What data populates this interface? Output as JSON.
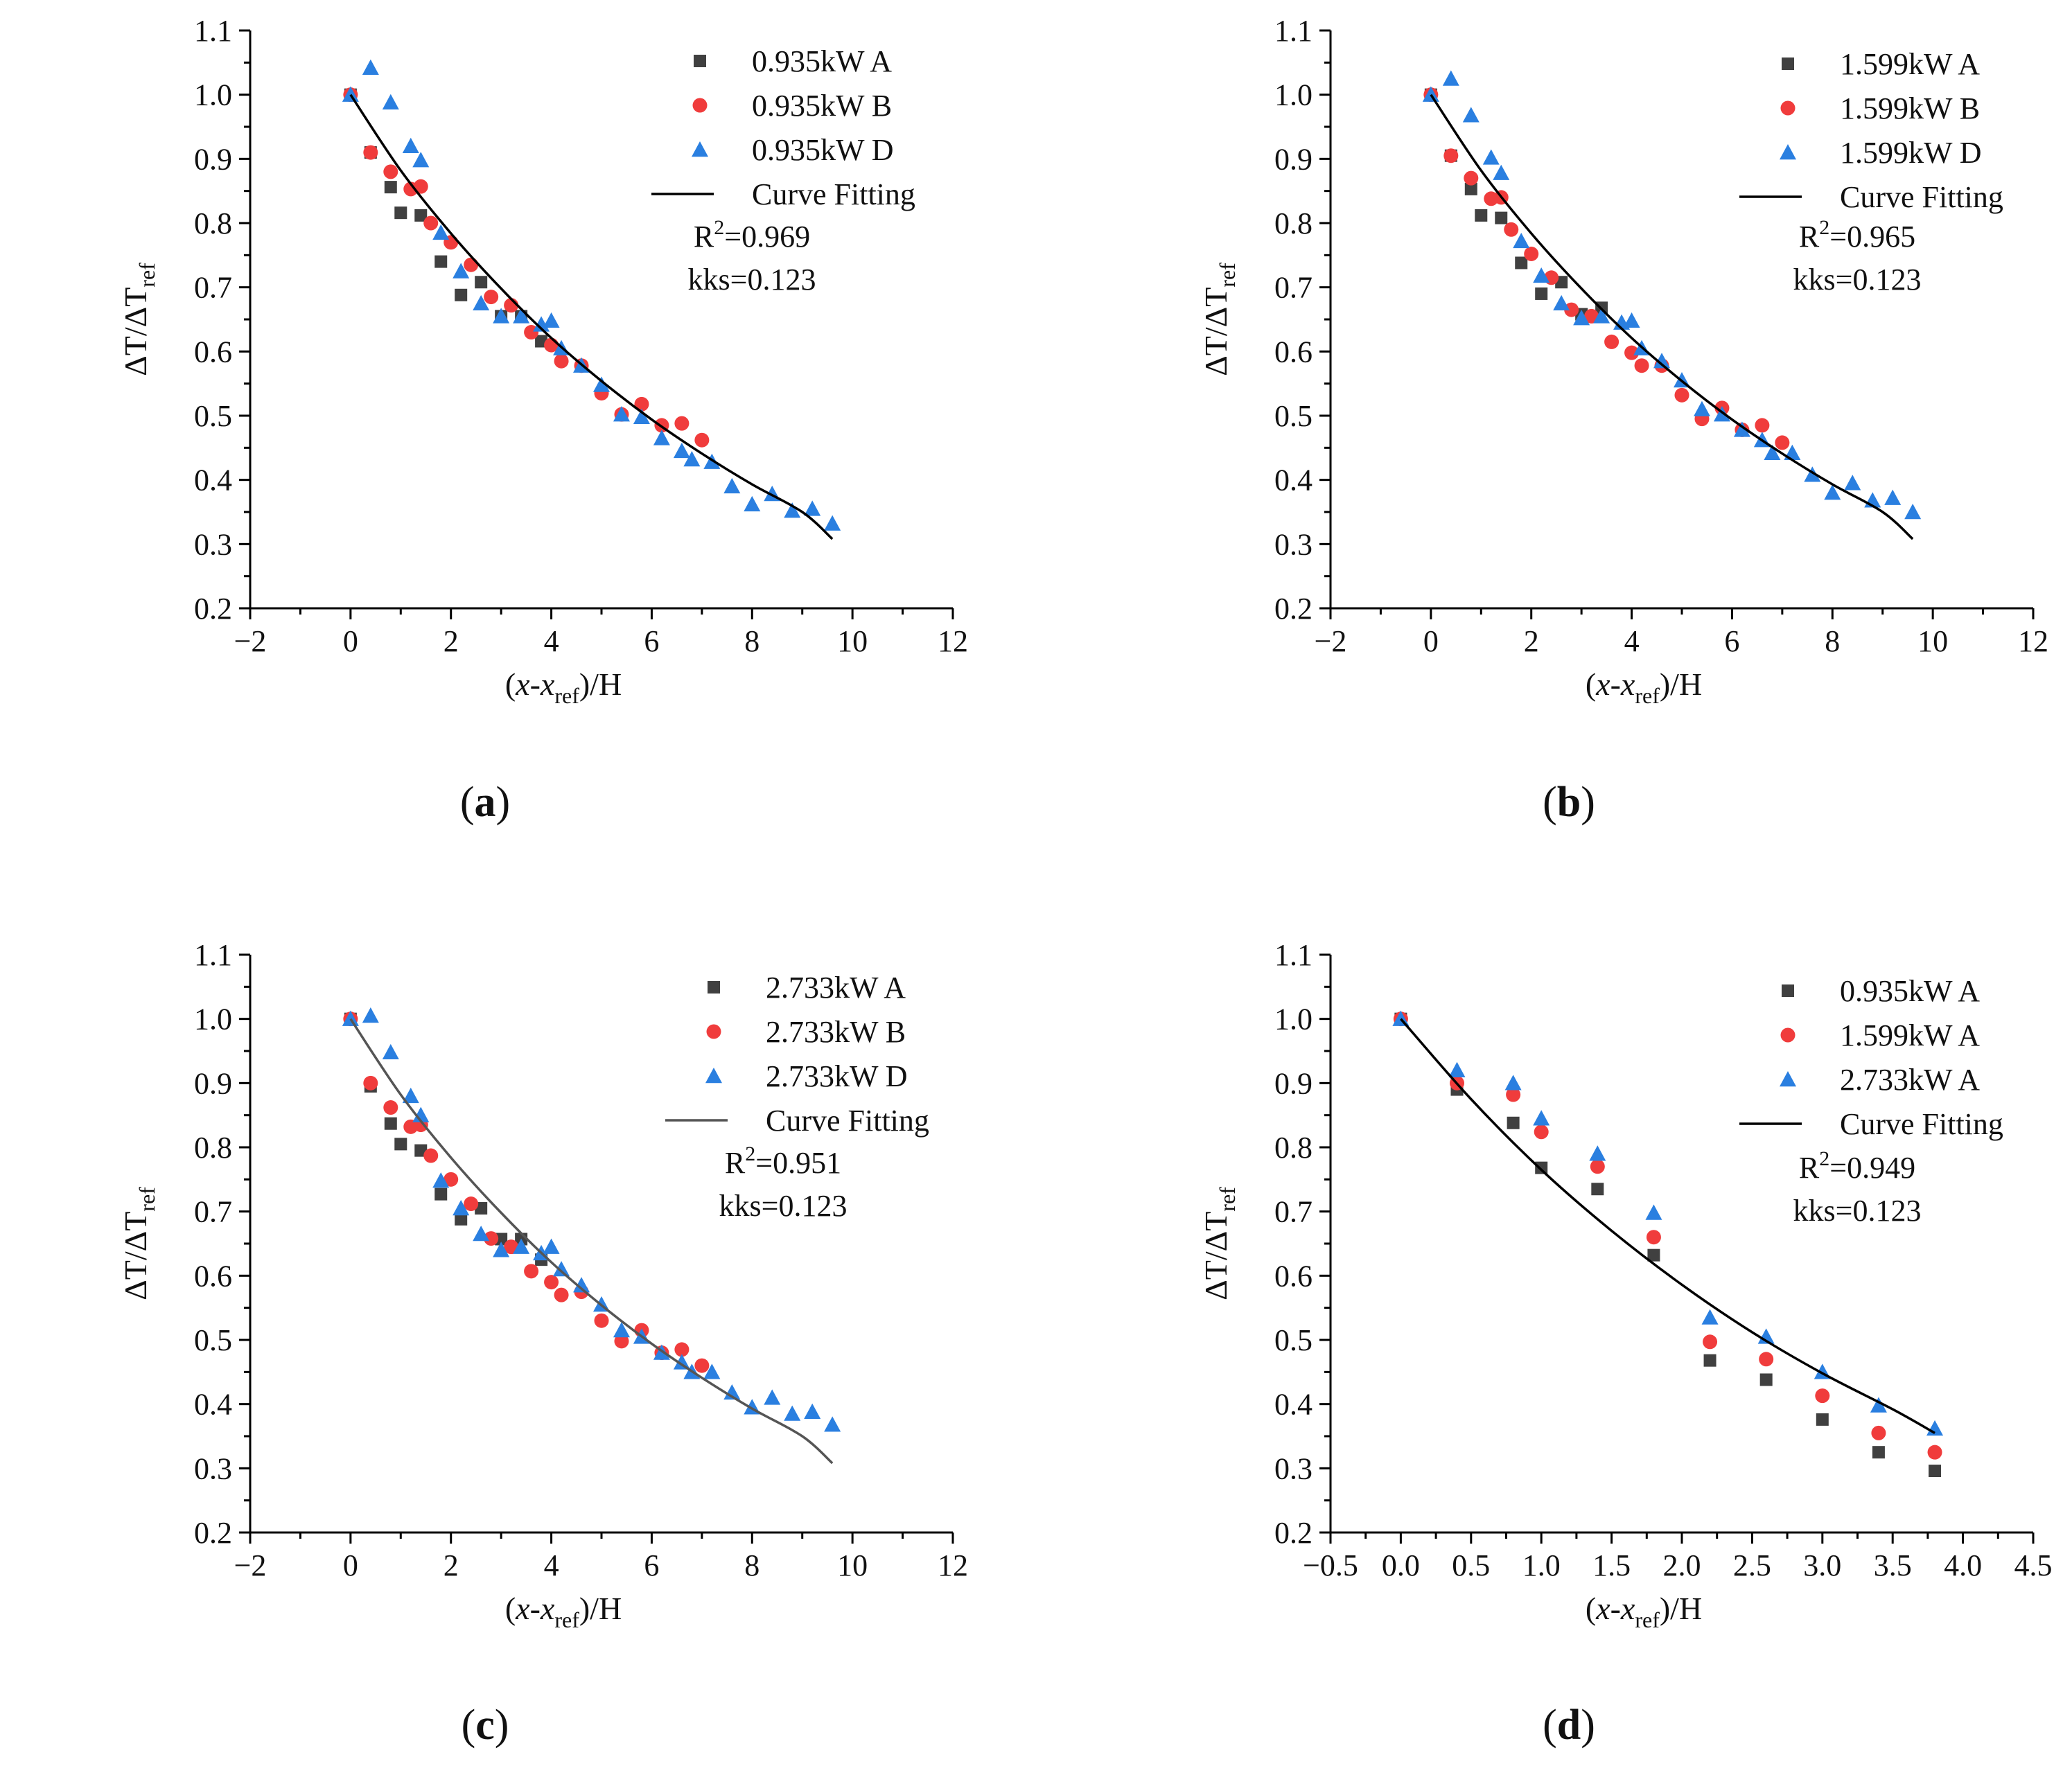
{
  "colors": {
    "A": "#404040",
    "B": "#f03c3c",
    "D": "#2a7fe0",
    "fit": "#000000",
    "fit_c": "#555555"
  },
  "chart_data": [
    {
      "id": "a",
      "panel_label": "a",
      "type": "scatter",
      "xlabel": "(x-x_ref)/H",
      "ylabel": "ΔT/ΔT_ref",
      "xlim": [
        -2,
        12
      ],
      "ylim": [
        0.2,
        1.1
      ],
      "xticks": [
        -2,
        0,
        2,
        4,
        6,
        8,
        10,
        12
      ],
      "xtick_labels": [
        "−2",
        "0",
        "2",
        "4",
        "6",
        "8",
        "10",
        "12"
      ],
      "yticks": [
        0.2,
        0.3,
        0.4,
        0.5,
        0.6,
        0.7,
        0.8,
        0.9,
        1.0,
        1.1
      ],
      "ytick_labels": [
        "0.2",
        "0.3",
        "0.4",
        "0.5",
        "0.6",
        "0.7",
        "0.8",
        "0.9",
        "1.0",
        "1.1"
      ],
      "series": [
        {
          "name": "0.935kW A",
          "marker": "square",
          "colorKey": "A",
          "x": [
            0,
            0.4,
            0.8,
            1.0,
            1.4,
            1.8,
            2.2,
            2.6,
            3.0,
            3.4,
            3.8
          ],
          "y": [
            1.0,
            0.91,
            0.856,
            0.816,
            0.812,
            0.74,
            0.688,
            0.708,
            0.655,
            0.655,
            0.616
          ]
        },
        {
          "name": "0.935kW B",
          "marker": "circle",
          "colorKey": "B",
          "x": [
            0,
            0.4,
            0.8,
            1.2,
            1.4,
            1.6,
            2.0,
            2.4,
            2.8,
            3.2,
            3.6,
            4.0,
            4.2,
            4.6,
            5.0,
            5.4,
            5.8,
            6.2,
            6.6,
            7.0
          ],
          "y": [
            1.0,
            0.91,
            0.88,
            0.853,
            0.857,
            0.8,
            0.77,
            0.735,
            0.685,
            0.672,
            0.63,
            0.61,
            0.585,
            0.578,
            0.535,
            0.502,
            0.518,
            0.485,
            0.488,
            0.462
          ]
        },
        {
          "name": "0.935kW D",
          "marker": "triangle",
          "colorKey": "D",
          "x": [
            0,
            0.4,
            0.8,
            1.2,
            1.4,
            1.8,
            2.2,
            2.6,
            3.0,
            3.4,
            3.8,
            4.0,
            4.2,
            4.6,
            5.0,
            5.4,
            5.8,
            6.2,
            6.6,
            6.8,
            7.2,
            7.6,
            8.0,
            8.4,
            8.8,
            9.2,
            9.6
          ],
          "y": [
            1.0,
            1.042,
            0.988,
            0.92,
            0.898,
            0.785,
            0.725,
            0.675,
            0.655,
            0.655,
            0.642,
            0.648,
            0.605,
            0.578,
            0.548,
            0.502,
            0.498,
            0.465,
            0.445,
            0.432,
            0.428,
            0.39,
            0.362,
            0.378,
            0.352,
            0.355,
            0.332
          ]
        },
        {
          "name": "Curve Fitting",
          "marker": "line",
          "colorKey": "fit",
          "type": "line",
          "x": [
            0,
            1,
            2,
            3,
            4,
            5,
            6,
            7,
            8,
            9,
            9.6
          ],
          "y": [
            1.0,
            0.882,
            0.784,
            0.698,
            0.621,
            0.554,
            0.494,
            0.441,
            0.393,
            0.35,
            0.308
          ]
        }
      ],
      "annotations": {
        "r2_prefix": "R",
        "r2_sup": "2",
        "r2_value": "=0.969",
        "kks": "kks=0.123"
      }
    },
    {
      "id": "b",
      "panel_label": "b",
      "type": "scatter",
      "xlabel": "(x-x_ref)/H",
      "ylabel": "ΔT/ΔT_ref",
      "xlim": [
        -2,
        12
      ],
      "ylim": [
        0.2,
        1.1
      ],
      "xticks": [
        -2,
        0,
        2,
        4,
        6,
        8,
        10,
        12
      ],
      "xtick_labels": [
        "−2",
        "0",
        "2",
        "4",
        "6",
        "8",
        "10",
        "12"
      ],
      "yticks": [
        0.2,
        0.3,
        0.4,
        0.5,
        0.6,
        0.7,
        0.8,
        0.9,
        1.0,
        1.1
      ],
      "ytick_labels": [
        "0.2",
        "0.3",
        "0.4",
        "0.5",
        "0.6",
        "0.7",
        "0.8",
        "0.9",
        "1.0",
        "1.1"
      ],
      "series": [
        {
          "name": "1.599kW A",
          "marker": "square",
          "colorKey": "A",
          "x": [
            0,
            0.4,
            0.8,
            1.0,
            1.4,
            1.8,
            2.2,
            2.6,
            3.0,
            3.4
          ],
          "y": [
            1.0,
            0.905,
            0.853,
            0.812,
            0.808,
            0.738,
            0.69,
            0.708,
            0.658,
            0.668
          ]
        },
        {
          "name": "1.599kW B",
          "marker": "circle",
          "colorKey": "B",
          "x": [
            0,
            0.4,
            0.8,
            1.2,
            1.4,
            1.6,
            2.0,
            2.4,
            2.8,
            3.2,
            3.6,
            4.0,
            4.2,
            4.6,
            5.0,
            5.4,
            5.8,
            6.2,
            6.6,
            7.0
          ],
          "y": [
            1.0,
            0.905,
            0.87,
            0.838,
            0.84,
            0.79,
            0.752,
            0.715,
            0.665,
            0.655,
            0.615,
            0.598,
            0.578,
            0.578,
            0.532,
            0.495,
            0.512,
            0.478,
            0.485,
            0.458
          ]
        },
        {
          "name": "1.599kW D",
          "marker": "triangle",
          "colorKey": "D",
          "x": [
            0,
            0.4,
            0.8,
            1.2,
            1.4,
            1.8,
            2.2,
            2.6,
            3.0,
            3.4,
            3.8,
            4.0,
            4.2,
            4.6,
            5.0,
            5.4,
            5.8,
            6.2,
            6.6,
            6.8,
            7.2,
            7.6,
            8.0,
            8.4,
            8.8,
            9.2,
            9.6
          ],
          "y": [
            1.0,
            1.025,
            0.968,
            0.902,
            0.878,
            0.772,
            0.718,
            0.675,
            0.652,
            0.655,
            0.645,
            0.648,
            0.605,
            0.585,
            0.555,
            0.51,
            0.502,
            0.478,
            0.462,
            0.442,
            0.442,
            0.408,
            0.38,
            0.395,
            0.368,
            0.372,
            0.35
          ]
        },
        {
          "name": "Curve Fitting",
          "marker": "line",
          "colorKey": "fit",
          "type": "line",
          "x": [
            0,
            1,
            2,
            3,
            4,
            5,
            6,
            7,
            8,
            9,
            9.6
          ],
          "y": [
            1.0,
            0.882,
            0.784,
            0.698,
            0.621,
            0.554,
            0.494,
            0.441,
            0.393,
            0.35,
            0.308
          ]
        }
      ],
      "annotations": {
        "r2_prefix": "R",
        "r2_sup": "2",
        "r2_value": "=0.965",
        "kks": "kks=0.123"
      }
    },
    {
      "id": "c",
      "panel_label": "c",
      "type": "scatter",
      "xlabel": "(x-x_ref)/H",
      "ylabel": "ΔT/ΔT_ref",
      "xlim": [
        -2,
        12
      ],
      "ylim": [
        0.2,
        1.1
      ],
      "xticks": [
        -2,
        0,
        2,
        4,
        6,
        8,
        10,
        12
      ],
      "xtick_labels": [
        "−2",
        "0",
        "2",
        "4",
        "6",
        "8",
        "10",
        "12"
      ],
      "yticks": [
        0.2,
        0.3,
        0.4,
        0.5,
        0.6,
        0.7,
        0.8,
        0.9,
        1.0,
        1.1
      ],
      "ytick_labels": [
        "0.2",
        "0.3",
        "0.4",
        "0.5",
        "0.6",
        "0.7",
        "0.8",
        "0.9",
        "1.0",
        "1.1"
      ],
      "series": [
        {
          "name": "2.733kW A",
          "marker": "square",
          "colorKey": "A",
          "x": [
            0,
            0.4,
            0.8,
            1.0,
            1.4,
            1.8,
            2.2,
            2.6,
            3.0,
            3.4,
            3.8
          ],
          "y": [
            1.0,
            0.895,
            0.837,
            0.805,
            0.795,
            0.727,
            0.688,
            0.705,
            0.657,
            0.657,
            0.625
          ]
        },
        {
          "name": "2.733kW B",
          "marker": "circle",
          "colorKey": "B",
          "x": [
            0,
            0.4,
            0.8,
            1.2,
            1.4,
            1.6,
            2.0,
            2.4,
            2.8,
            3.2,
            3.6,
            4.0,
            4.2,
            4.6,
            5.0,
            5.4,
            5.8,
            6.2,
            6.6,
            7.0
          ],
          "y": [
            1.0,
            0.9,
            0.862,
            0.832,
            0.835,
            0.787,
            0.75,
            0.712,
            0.658,
            0.645,
            0.607,
            0.59,
            0.57,
            0.575,
            0.53,
            0.498,
            0.515,
            0.48,
            0.485,
            0.46
          ]
        },
        {
          "name": "2.733kW D",
          "marker": "triangle",
          "colorKey": "D",
          "x": [
            0,
            0.4,
            0.8,
            1.2,
            1.4,
            1.8,
            2.2,
            2.6,
            3.0,
            3.4,
            3.8,
            4.0,
            4.2,
            4.6,
            5.0,
            5.4,
            5.8,
            6.2,
            6.6,
            6.8,
            7.2,
            7.6,
            8.0,
            8.4,
            8.8,
            9.2,
            9.6
          ],
          "y": [
            1.0,
            1.005,
            0.948,
            0.88,
            0.85,
            0.748,
            0.705,
            0.665,
            0.64,
            0.645,
            0.635,
            0.645,
            0.61,
            0.585,
            0.555,
            0.515,
            0.505,
            0.48,
            0.465,
            0.45,
            0.45,
            0.418,
            0.395,
            0.41,
            0.385,
            0.388,
            0.368
          ]
        },
        {
          "name": "Curve Fitting",
          "marker": "line",
          "colorKey": "fit_c",
          "type": "line",
          "x": [
            0,
            1,
            2,
            3,
            4,
            5,
            6,
            7,
            8,
            9,
            9.6
          ],
          "y": [
            1.0,
            0.882,
            0.784,
            0.698,
            0.621,
            0.554,
            0.494,
            0.441,
            0.393,
            0.35,
            0.308
          ]
        }
      ],
      "annotations": {
        "r2_prefix": "R",
        "r2_sup": "2",
        "r2_value": "=0.951",
        "kks": "kks=0.123"
      }
    },
    {
      "id": "d",
      "panel_label": "d",
      "type": "scatter",
      "xlabel": "(x-x_ref)/H",
      "ylabel": "ΔT/ΔT_ref",
      "xlim": [
        -0.5,
        4.5
      ],
      "ylim": [
        0.2,
        1.1
      ],
      "xticks": [
        -0.5,
        0.0,
        0.5,
        1.0,
        1.5,
        2.0,
        2.5,
        3.0,
        3.5,
        4.0,
        4.5
      ],
      "xtick_labels": [
        "−0.5",
        "0.0",
        "0.5",
        "1.0",
        "1.5",
        "2.0",
        "2.5",
        "3.0",
        "3.5",
        "4.0",
        "4.5"
      ],
      "yticks": [
        0.2,
        0.3,
        0.4,
        0.5,
        0.6,
        0.7,
        0.8,
        0.9,
        1.0,
        1.1
      ],
      "ytick_labels": [
        "0.2",
        "0.3",
        "0.4",
        "0.5",
        "0.6",
        "0.7",
        "0.8",
        "0.9",
        "1.0",
        "1.1"
      ],
      "series": [
        {
          "name": "0.935kW A",
          "marker": "square",
          "colorKey": "A",
          "x": [
            0,
            0.4,
            0.8,
            1.0,
            1.4,
            1.8,
            2.2,
            2.6,
            3.0,
            3.4,
            3.8
          ],
          "y": [
            1.0,
            0.89,
            0.838,
            0.768,
            0.735,
            0.632,
            0.468,
            0.438,
            0.376,
            0.325,
            0.296
          ]
        },
        {
          "name": "1.599kW A",
          "marker": "circle",
          "colorKey": "B",
          "x": [
            0,
            0.4,
            0.8,
            1.0,
            1.4,
            1.8,
            2.2,
            2.6,
            3.0,
            3.4,
            3.8
          ],
          "y": [
            1.0,
            0.9,
            0.882,
            0.824,
            0.77,
            0.66,
            0.497,
            0.47,
            0.413,
            0.355,
            0.325
          ]
        },
        {
          "name": "2.733kW A",
          "marker": "triangle",
          "colorKey": "D",
          "x": [
            0,
            0.4,
            0.8,
            1.0,
            1.4,
            1.8,
            2.2,
            2.6,
            3.0,
            3.4,
            3.8
          ],
          "y": [
            1.0,
            0.92,
            0.9,
            0.845,
            0.79,
            0.698,
            0.535,
            0.505,
            0.45,
            0.398,
            0.362
          ]
        },
        {
          "name": "Curve Fitting",
          "marker": "line",
          "colorKey": "fit",
          "type": "line",
          "x": [
            0,
            0.5,
            1.0,
            1.5,
            2.0,
            2.5,
            3.0,
            3.5,
            3.8
          ],
          "y": [
            1.0,
            0.875,
            0.765,
            0.67,
            0.586,
            0.512,
            0.448,
            0.392,
            0.355
          ]
        }
      ],
      "annotations": {
        "r2_prefix": "R",
        "r2_sup": "2",
        "r2_value": "=0.949",
        "kks": "kks=0.123"
      }
    }
  ]
}
